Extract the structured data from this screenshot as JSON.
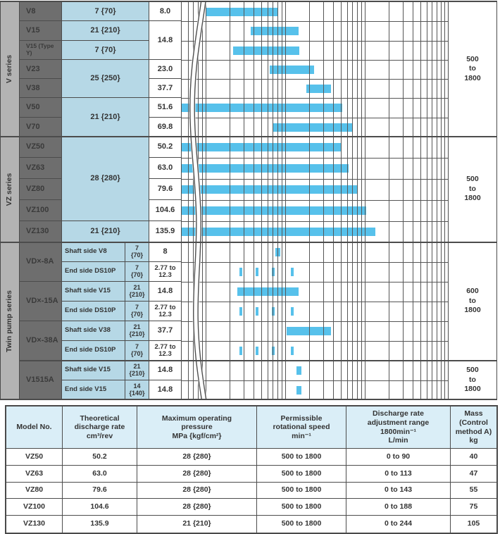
{
  "palette": {
    "bar_blue": "#57c1eb",
    "cell_blue": "#b6d8e6",
    "header_blue": "#daeef7",
    "model_gray": "#6e6e6e",
    "series_gray": "#b3b3b3",
    "grid_dark": "#4c4c4c",
    "text": "#333333"
  },
  "top": {
    "series_labels": [
      {
        "text": "V series"
      },
      {
        "text": "VZ series"
      },
      {
        "text": "Twin pump series"
      }
    ],
    "speed_cells": [
      {
        "text": "500\nto\n1800"
      },
      {
        "text": "500\nto\n1800"
      },
      {
        "text": "600\nto\n1800"
      },
      {
        "text": "500\nto\n1800"
      }
    ],
    "rows": [
      {
        "model": {
          "text": "V8"
        },
        "pressure": {
          "text": "7 {70}"
        },
        "discharge": {
          "text": "8.0"
        }
      },
      {
        "model": {
          "text": "V15"
        },
        "pressure": {
          "text": "21 {210}"
        },
        "discharge": {
          "text": "14.8",
          "span": 2
        }
      },
      {
        "model": {
          "text": "V15 (Type Y)"
        },
        "pressure": {
          "text": "7 {70}"
        }
      },
      {
        "model": {
          "text": "V23"
        },
        "pressure": {
          "text": "25 {250}",
          "span": 2
        },
        "discharge": {
          "text": "23.0"
        }
      },
      {
        "model": {
          "text": "V38"
        },
        "discharge": {
          "text": "37.7"
        }
      },
      {
        "model": {
          "text": "V50"
        },
        "pressure": {
          "text": "21 {210}",
          "span": 2
        },
        "discharge": {
          "text": "51.6"
        }
      },
      {
        "model": {
          "text": "V70"
        },
        "discharge": {
          "text": "69.8"
        }
      },
      {
        "model": {
          "text": "VZ50"
        },
        "pressure": {
          "text": "28 {280}",
          "span": 4
        },
        "discharge": {
          "text": "50.2"
        }
      },
      {
        "model": {
          "text": "VZ63"
        },
        "discharge": {
          "text": "63.0"
        }
      },
      {
        "model": {
          "text": "VZ80"
        },
        "discharge": {
          "text": "79.6"
        }
      },
      {
        "model": {
          "text": "VZ100"
        },
        "discharge": {
          "text": "104.6"
        }
      },
      {
        "model": {
          "text": "VZ130"
        },
        "pressure": {
          "text": "21 {210}"
        },
        "discharge": {
          "text": "135.9"
        }
      },
      {
        "model": {
          "text": "VD×-8A",
          "span": 2
        },
        "side": {
          "text": "Shaft side V8"
        },
        "pressure": {
          "text": "7\n{70}"
        },
        "discharge": {
          "text": "8"
        }
      },
      {
        "side": {
          "text": "End side   DS10P"
        },
        "pressure": {
          "text": "7\n{70}"
        },
        "discharge": {
          "text": "2.77 to\n12.3"
        }
      },
      {
        "model": {
          "text": "VD×-15A",
          "span": 2
        },
        "side": {
          "text": "Shaft side V15"
        },
        "pressure": {
          "text": "21\n{210}"
        },
        "discharge": {
          "text": "14.8"
        }
      },
      {
        "side": {
          "text": "End side   DS10P"
        },
        "pressure": {
          "text": "7\n{70}"
        },
        "discharge": {
          "text": "2.77 to\n12.3"
        }
      },
      {
        "model": {
          "text": "VD×-38A",
          "span": 2
        },
        "side": {
          "text": "Shaft side V38"
        },
        "pressure": {
          "text": "21\n{210}"
        },
        "discharge": {
          "text": "37.7"
        }
      },
      {
        "side": {
          "text": "End side   DS10P"
        },
        "pressure": {
          "text": "7\n{70}"
        },
        "discharge": {
          "text": "2.77 to\n12.3"
        }
      },
      {
        "model": {
          "text": "V1515A",
          "span": 2
        },
        "side": {
          "text": "Shaft side V15"
        },
        "pressure": {
          "text": "21\n{210}"
        },
        "discharge": {
          "text": "14.8"
        }
      },
      {
        "side": {
          "text": "End side   V15"
        },
        "pressure": {
          "text": "14\n{140}"
        },
        "discharge": {
          "text": "14.8"
        }
      }
    ]
  },
  "chart_data": {
    "type": "bar",
    "subtype": "horizontal-range-bars",
    "x_axis": {
      "scale": "log",
      "unit": "discharge rate cm³/rev",
      "decade_ticks": [
        1,
        10,
        100
      ],
      "grid": true,
      "axis_break_at_left": true
    },
    "right_column": "permissible rotational speed min⁻¹",
    "series": [
      {
        "label": "V8",
        "type": "range",
        "values": [
          1.0,
          8.0
        ],
        "speed": "500 to 1800"
      },
      {
        "label": "V15",
        "type": "range",
        "values": [
          3.7,
          14.8
        ],
        "speed": "500 to 1800"
      },
      {
        "label": "V15 (Type Y)",
        "type": "range",
        "values": [
          2.2,
          14.8
        ],
        "speed": "500 to 1800"
      },
      {
        "label": "V23",
        "type": "range",
        "values": [
          6.4,
          23.0
        ],
        "speed": "500 to 1800"
      },
      {
        "label": "V38",
        "type": "range",
        "values": [
          18.5,
          37.7
        ],
        "speed": "500 to 1800"
      },
      {
        "label": "V50",
        "type": "range",
        "values": [
          0,
          51.6
        ],
        "speed": "500 to 1800"
      },
      {
        "label": "V70",
        "type": "range",
        "values": [
          7.0,
          69.8
        ],
        "speed": "500 to 1800"
      },
      {
        "label": "VZ50",
        "type": "range",
        "values": [
          0,
          50.2
        ],
        "speed": "500 to 1800"
      },
      {
        "label": "VZ63",
        "type": "range",
        "values": [
          0,
          63.0
        ],
        "speed": "500 to 1800"
      },
      {
        "label": "VZ80",
        "type": "range",
        "values": [
          0,
          79.6
        ],
        "speed": "500 to 1800"
      },
      {
        "label": "VZ100",
        "type": "range",
        "values": [
          0,
          104.6
        ],
        "speed": "500 to 1800"
      },
      {
        "label": "VZ130",
        "type": "range",
        "values": [
          0,
          135.9
        ],
        "speed": "500 to 1800"
      },
      {
        "label": "VD×-8A Shaft side V8",
        "type": "point",
        "values": [
          8
        ],
        "speed": "600 to 1800"
      },
      {
        "label": "VD×-8A End side DS10P",
        "type": "ticks",
        "values": [
          2.77,
          4.46,
          7.04,
          12.3
        ],
        "speed": "600 to 1800"
      },
      {
        "label": "VD×-15A Shaft side V15",
        "type": "range",
        "values": [
          2.5,
          14.8
        ],
        "speed": "600 to 1800"
      },
      {
        "label": "VD×-15A End side DS10P",
        "type": "ticks",
        "values": [
          2.77,
          4.46,
          7.04,
          12.3
        ],
        "speed": "600 to 1800"
      },
      {
        "label": "VD×-38A Shaft side V38",
        "type": "range",
        "values": [
          10.5,
          37.7
        ],
        "speed": "600 to 1800"
      },
      {
        "label": "VD×-38A End side DS10P",
        "type": "ticks",
        "values": [
          2.77,
          4.46,
          7.04,
          12.3
        ],
        "speed": "600 to 1800"
      },
      {
        "label": "V1515A Shaft side V15",
        "type": "point",
        "values": [
          14.8
        ],
        "speed": "500 to 1800"
      },
      {
        "label": "V1515A End side V15",
        "type": "point",
        "values": [
          14.8
        ],
        "speed": "500 to 1800"
      }
    ]
  },
  "spec": {
    "headers": [
      {
        "text": "Model No."
      },
      {
        "text": "Theoretical\ndischarge rate\ncm³/rev"
      },
      {
        "text": "Maximum operating\npressure\nMPa {kgf/cm²}"
      },
      {
        "text": "Permissible\nrotational speed\nmin⁻¹"
      },
      {
        "text": "Discharge rate\nadjustment range\n1800min⁻¹\nL/min"
      },
      {
        "text": "Mass\n(Control method A)\nkg"
      }
    ],
    "rows": [
      [
        "VZ50",
        "50.2",
        "28 {280}",
        "500 to 1800",
        "0 to  90",
        "40"
      ],
      [
        "VZ63",
        "63.0",
        "28 {280}",
        "500 to 1800",
        "0 to 113",
        "47"
      ],
      [
        "VZ80",
        "79.6",
        "28 {280}",
        "500 to 1800",
        "0 to 143",
        "55"
      ],
      [
        "VZ100",
        "104.6",
        "28 {280}",
        "500 to 1800",
        "0 to 188",
        "75"
      ],
      [
        "VZ130",
        "135.9",
        "21 {210}",
        "500 to 1800",
        "0 to 244",
        "105"
      ]
    ]
  }
}
